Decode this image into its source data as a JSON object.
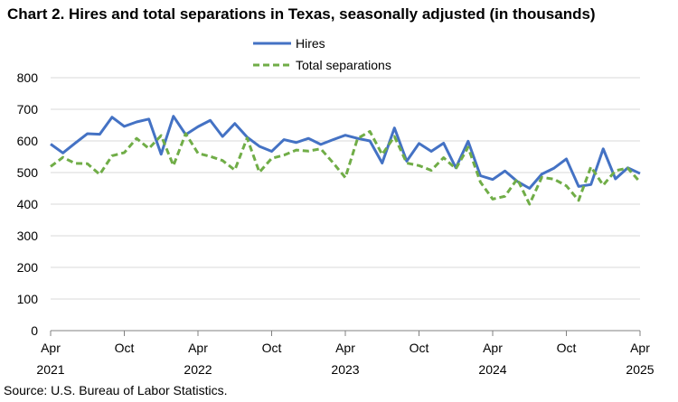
{
  "title": "Chart 2. Hires and total separations in Texas, seasonally adjusted (in thousands)",
  "source": "Source: U.S. Bureau of Labor Statistics.",
  "colors": {
    "hires": "#4472C4",
    "separations": "#70AD47",
    "grid": "#d9d9d9",
    "axis": "#808080"
  },
  "chart_data": {
    "type": "line",
    "title": "Chart 2. Hires and total separations in Texas, seasonally adjusted (in thousands)",
    "xlabel": "",
    "ylabel": "",
    "ylim": [
      0,
      800
    ],
    "yticks": [
      0,
      100,
      200,
      300,
      400,
      500,
      600,
      700,
      800
    ],
    "grid": true,
    "legend_position": "top-center",
    "x": [
      "2021-04",
      "2021-05",
      "2021-06",
      "2021-07",
      "2021-08",
      "2021-09",
      "2021-10",
      "2021-11",
      "2021-12",
      "2022-01",
      "2022-02",
      "2022-03",
      "2022-04",
      "2022-05",
      "2022-06",
      "2022-07",
      "2022-08",
      "2022-09",
      "2022-10",
      "2022-11",
      "2022-12",
      "2023-01",
      "2023-02",
      "2023-03",
      "2023-04",
      "2023-05",
      "2023-06",
      "2023-07",
      "2023-08",
      "2023-09",
      "2023-10",
      "2023-11",
      "2023-12",
      "2024-01",
      "2024-02",
      "2024-03",
      "2024-04",
      "2024-05",
      "2024-06",
      "2024-07",
      "2024-08",
      "2024-09",
      "2024-10",
      "2024-11",
      "2024-12",
      "2025-01",
      "2025-02",
      "2025-03",
      "2025-04"
    ],
    "x_tick_labels": [
      {
        "index": 0,
        "month": "Apr",
        "year": "2021"
      },
      {
        "index": 6,
        "month": "Oct",
        "year": ""
      },
      {
        "index": 12,
        "month": "Apr",
        "year": "2022"
      },
      {
        "index": 18,
        "month": "Oct",
        "year": ""
      },
      {
        "index": 24,
        "month": "Apr",
        "year": "2023"
      },
      {
        "index": 30,
        "month": "Oct",
        "year": ""
      },
      {
        "index": 36,
        "month": "Apr",
        "year": "2024"
      },
      {
        "index": 42,
        "month": "Oct",
        "year": ""
      },
      {
        "index": 48,
        "month": "Apr",
        "year": "2025"
      }
    ],
    "series": [
      {
        "name": "Hires",
        "style": "solid",
        "values": [
          590,
          562,
          593,
          623,
          621,
          675,
          646,
          660,
          669,
          558,
          678,
          620,
          645,
          665,
          614,
          655,
          612,
          583,
          567,
          604,
          595,
          608,
          589,
          604,
          618,
          608,
          600,
          530,
          641,
          536,
          592,
          567,
          593,
          515,
          599,
          490,
          478,
          505,
          472,
          450,
          495,
          514,
          543,
          456,
          462,
          575,
          480,
          515,
          497
        ]
      },
      {
        "name": "Total separations",
        "style": "dashed",
        "values": [
          519,
          548,
          529,
          528,
          494,
          553,
          563,
          608,
          576,
          617,
          522,
          623,
          561,
          551,
          538,
          508,
          609,
          501,
          545,
          555,
          571,
          568,
          575,
          531,
          484,
          608,
          630,
          557,
          614,
          530,
          522,
          507,
          547,
          512,
          580,
          470,
          416,
          425,
          480,
          400,
          485,
          479,
          458,
          412,
          518,
          460,
          506,
          514,
          470
        ]
      }
    ]
  }
}
